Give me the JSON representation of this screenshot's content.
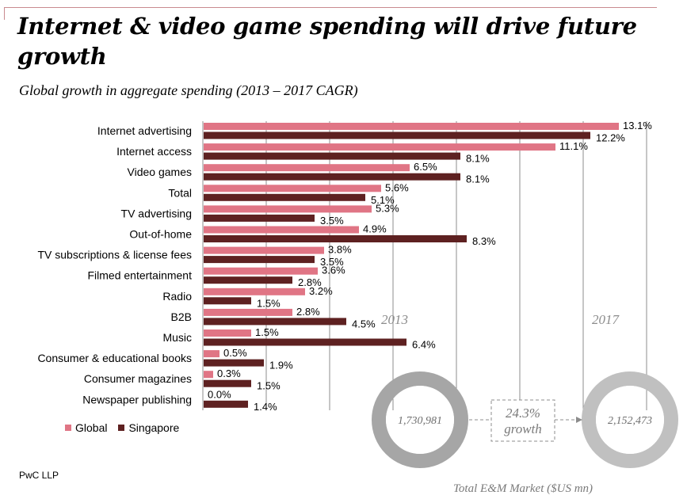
{
  "header": {
    "title": "Internet & video game spending will drive future growth",
    "subtitle": "Global growth in aggregate spending (2013 – 2017 CAGR)"
  },
  "colors": {
    "global": "#e07585",
    "singapore": "#5e2121",
    "accent_line": "#c98a8f",
    "gridline": "#8c8c8c",
    "ring_2013": "#a6a6a6",
    "ring_2017": "#c0c0c0"
  },
  "chart_data": {
    "type": "bar",
    "orientation": "horizontal",
    "title": "Global growth in aggregate spending (2013 – 2017 CAGR)",
    "xlabel": "",
    "ylabel": "",
    "xlim": [
      0,
      14
    ],
    "x_ticks": [
      0,
      2,
      4,
      6,
      8,
      10,
      12,
      14
    ],
    "grid": true,
    "legend_position": "bottom-left",
    "unit": "%",
    "categories": [
      "Internet advertising",
      "Internet access",
      "Video games",
      "Total",
      "TV advertising",
      "Out-of-home",
      "TV subscriptions & license fees",
      "Filmed entertainment",
      "Radio",
      "B2B",
      "Music",
      "Consumer & educational books",
      "Consumer magazines",
      "Newspaper publishing"
    ],
    "series": [
      {
        "name": "Global",
        "values": [
          13.1,
          11.1,
          6.5,
          5.6,
          5.3,
          4.9,
          3.8,
          3.6,
          3.2,
          2.8,
          1.5,
          0.5,
          0.3,
          0.0
        ]
      },
      {
        "name": "Singapore",
        "values": [
          12.2,
          8.1,
          8.1,
          5.1,
          3.5,
          8.3,
          3.5,
          2.8,
          1.5,
          4.5,
          6.4,
          1.9,
          1.5,
          1.4
        ]
      }
    ]
  },
  "market": {
    "year_start": "2013",
    "year_end": "2017",
    "value_start": "1,730,981",
    "value_end": "2,152,473",
    "growth_pct": "24.3%",
    "growth_word": "growth",
    "caption": "Total E&M Market ($US mn)"
  },
  "legend": {
    "items": [
      {
        "label": "Global"
      },
      {
        "label": "Singapore"
      }
    ]
  },
  "footer": {
    "source": "PwC LLP"
  }
}
